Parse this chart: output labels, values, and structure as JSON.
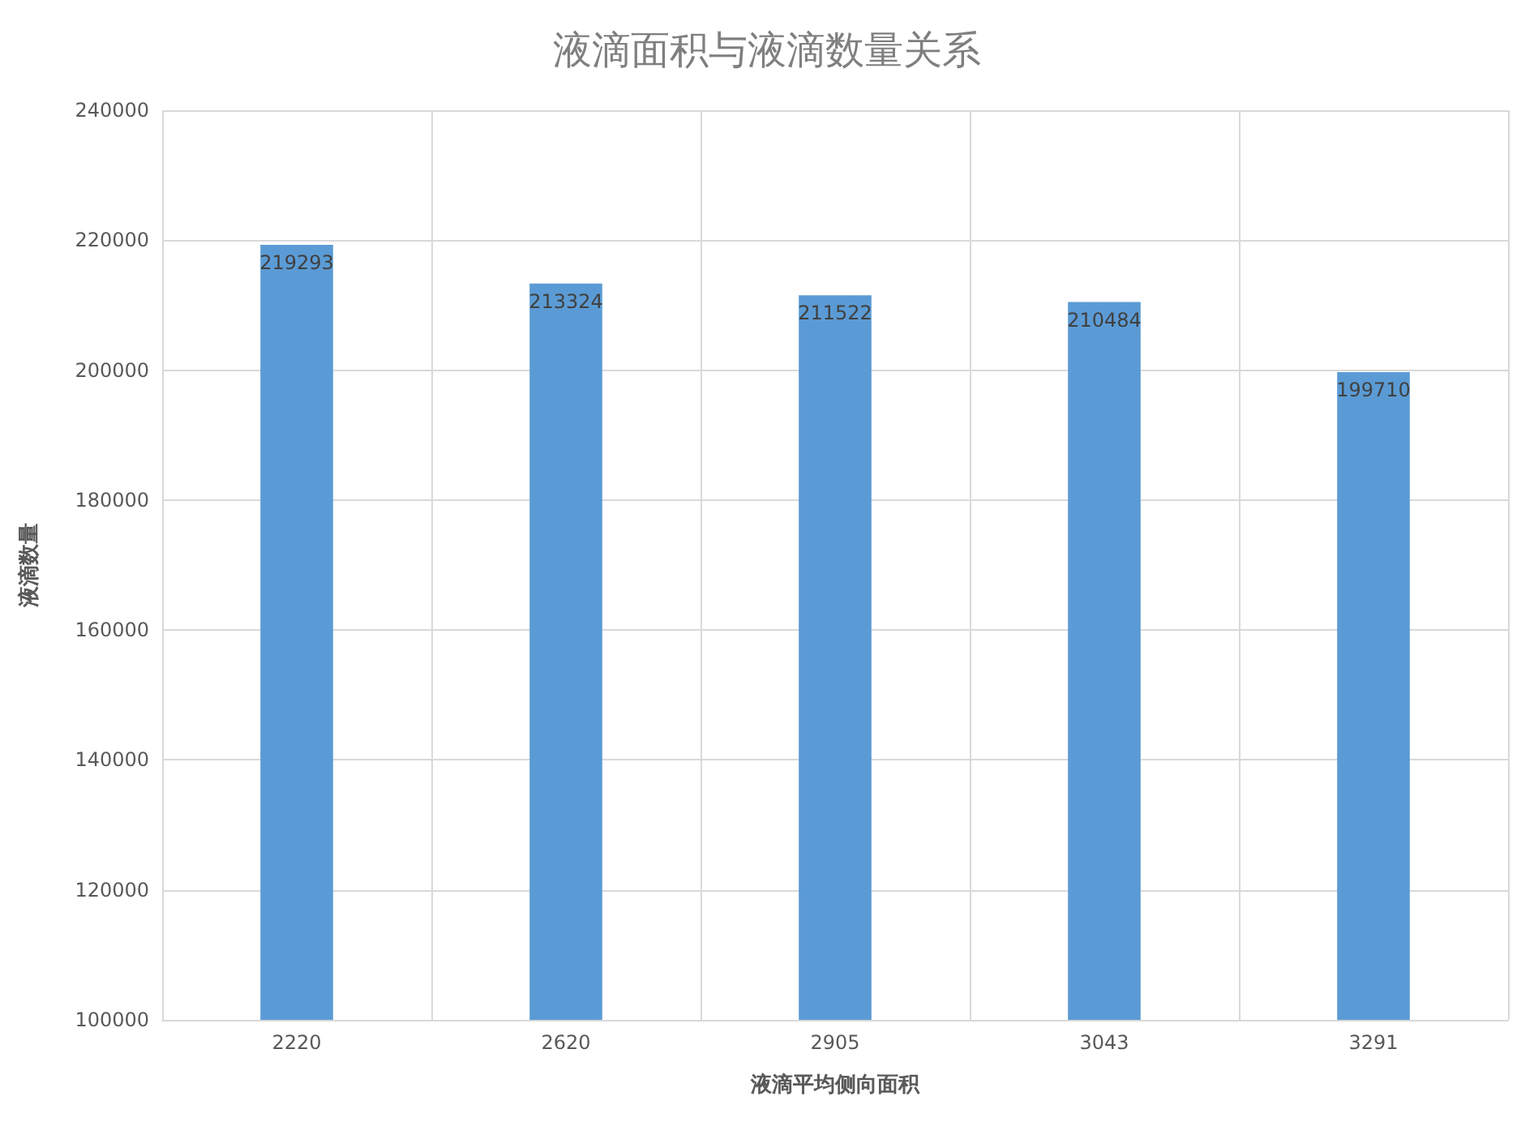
{
  "chart_data": {
    "type": "bar",
    "title": "液滴面积与液滴数量关系",
    "xlabel": "液滴平均侧向面积",
    "ylabel": "液滴数量",
    "categories": [
      "2220",
      "2620",
      "2905",
      "3043",
      "3291"
    ],
    "values": [
      219293,
      213324,
      211522,
      210484,
      199710
    ],
    "color": "#5b9bd5",
    "ylim": [
      100000,
      240000
    ],
    "yticks": [
      100000,
      120000,
      140000,
      160000,
      180000,
      200000,
      220000,
      240000
    ],
    "grid": true,
    "data_labels": true
  }
}
